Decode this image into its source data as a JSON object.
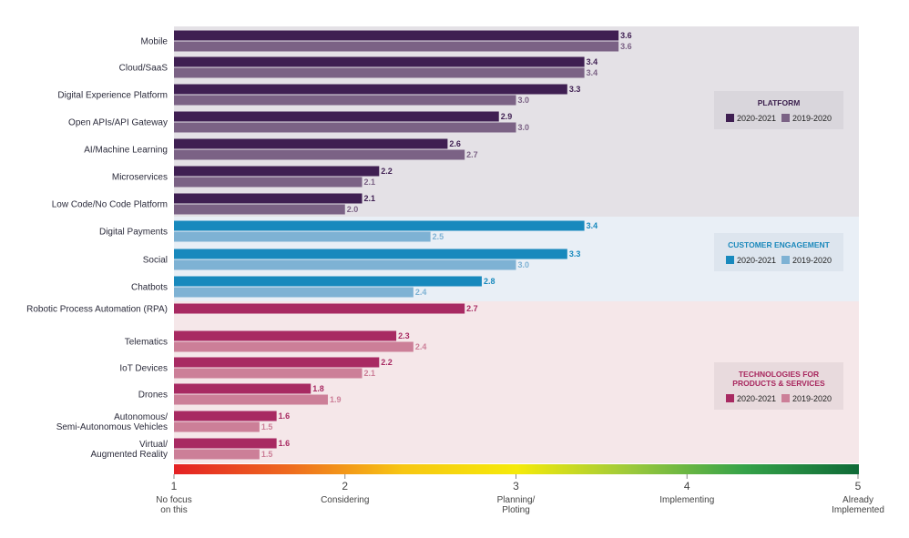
{
  "chart_data": {
    "type": "bar",
    "orientation": "horizontal",
    "xlim": [
      1,
      5
    ],
    "axis_ticks": [
      {
        "value": 1,
        "label": "1",
        "text": [
          "No focus",
          "on this"
        ]
      },
      {
        "value": 2,
        "label": "2",
        "text": [
          "Considering"
        ]
      },
      {
        "value": 3,
        "label": "3",
        "text": [
          "Planning/",
          "Ploting"
        ]
      },
      {
        "value": 4,
        "label": "4",
        "text": [
          "Implementing"
        ]
      },
      {
        "value": 5,
        "label": "5",
        "text": [
          "Already",
          "Implemented"
        ]
      }
    ],
    "groups": [
      {
        "title": [
          "PLATFORM"
        ],
        "band_color": "#e4e1e6",
        "title_color": "#3b1f4d",
        "legend_bg": "#d9d6dc",
        "color_current": "#3f1f52",
        "color_previous": "#7b6285",
        "series_names": [
          "2020-2021",
          "2019-2020"
        ],
        "categories": [
          {
            "name": [
              "Mobile"
            ],
            "current": 3.6,
            "previous": 3.6
          },
          {
            "name": [
              "Cloud/SaaS"
            ],
            "current": 3.4,
            "previous": 3.4
          },
          {
            "name": [
              "Digital Experience Platform"
            ],
            "current": 3.3,
            "previous": 3.0
          },
          {
            "name": [
              "Open APIs/API Gateway"
            ],
            "current": 2.9,
            "previous": 3.0
          },
          {
            "name": [
              "AI/Machine Learning"
            ],
            "current": 2.6,
            "previous": 2.7
          },
          {
            "name": [
              "Microservices"
            ],
            "current": 2.2,
            "previous": 2.1
          },
          {
            "name": [
              "Low Code/No Code Platform"
            ],
            "current": 2.1,
            "previous": 2.0
          }
        ]
      },
      {
        "title": [
          "CUSTOMER ENGAGEMENT"
        ],
        "band_color": "#e9eff6",
        "title_color": "#1a88bb",
        "legend_bg": "#dde5ee",
        "color_current": "#1889bd",
        "color_previous": "#7eb2d4",
        "series_names": [
          "2020-2021",
          "2019-2020"
        ],
        "categories": [
          {
            "name": [
              "Digital Payments"
            ],
            "current": 3.4,
            "previous": 2.5
          },
          {
            "name": [
              "Social"
            ],
            "current": 3.3,
            "previous": 3.0
          },
          {
            "name": [
              "Chatbots"
            ],
            "current": 2.8,
            "previous": 2.4
          }
        ]
      },
      {
        "title": [
          "TECHNOLOGIES FOR",
          "PRODUCTS & SERVICES"
        ],
        "band_color": "#f5e7e9",
        "title_color": "#a8275e",
        "legend_bg": "#e8dadd",
        "color_current": "#a82a62",
        "color_previous": "#cc7f98",
        "series_names": [
          "2020-2021",
          "2019-2020"
        ],
        "categories": [
          {
            "name": [
              "Robotic Process Automation (RPA)"
            ],
            "current": 2.7,
            "previous": null
          },
          {
            "name": [
              "Telematics"
            ],
            "current": 2.3,
            "previous": 2.4
          },
          {
            "name": [
              "IoT Devices"
            ],
            "current": 2.2,
            "previous": 2.1
          },
          {
            "name": [
              "Drones"
            ],
            "current": 1.8,
            "previous": 1.9
          },
          {
            "name": [
              "Autonomous/",
              "Semi-Autonomous Vehicles"
            ],
            "current": 1.6,
            "previous": 1.5
          },
          {
            "name": [
              "Virtual/",
              "Augmented Reality"
            ],
            "current": 1.6,
            "previous": 1.5
          }
        ]
      }
    ],
    "gradient_colors": [
      "#e42124",
      "#ee6a1f",
      "#f7c613",
      "#f5ea0a",
      "#9cc93c",
      "#35a249",
      "#0f6a37"
    ]
  }
}
